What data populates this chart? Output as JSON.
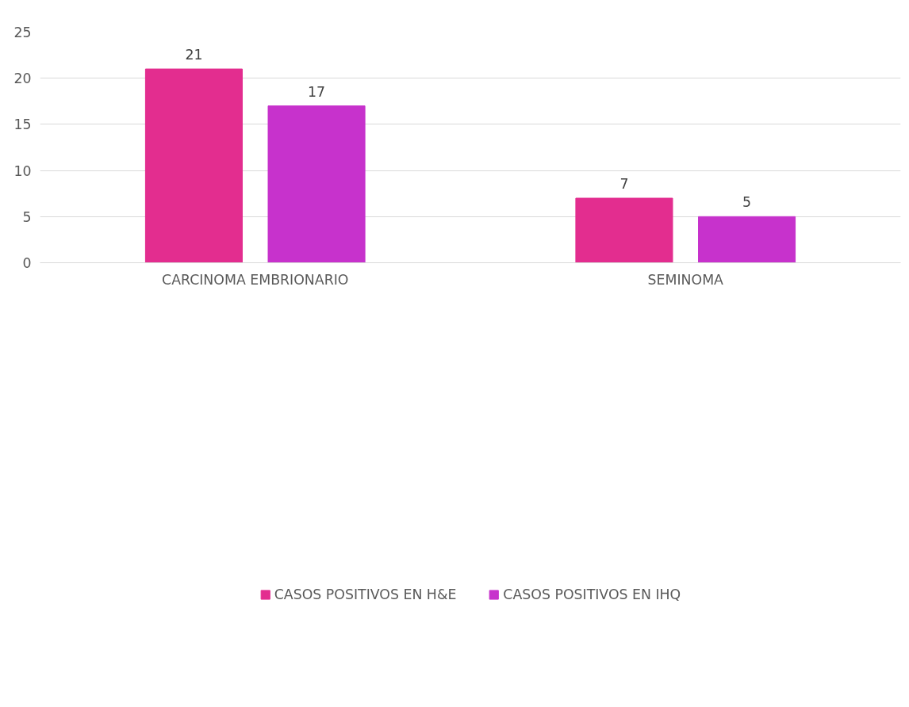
{
  "chart_data": {
    "type": "bar",
    "categories": [
      "CARCINOMA EMBRIONARIO",
      "SEMINOMA"
    ],
    "series": [
      {
        "name": "CASOS POSITIVOS EN H&E",
        "color": "#e32d8f",
        "values": [
          21,
          7
        ]
      },
      {
        "name": "CASOS POSITIVOS EN IHQ",
        "color": "#c732cc",
        "values": [
          17,
          5
        ]
      }
    ],
    "ylim": [
      0,
      25
    ],
    "yticks": [
      0,
      5,
      10,
      15,
      20,
      25
    ],
    "grid": "y",
    "legend": "bottom",
    "data_labels": true
  }
}
